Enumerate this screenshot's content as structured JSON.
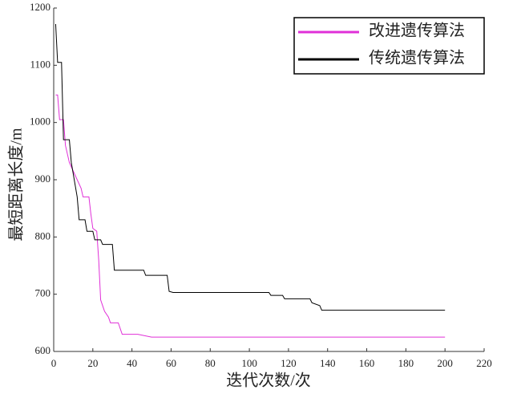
{
  "chart_data": {
    "type": "line",
    "x_label": "迭代次数/次",
    "y_label": "最短距离长度/m",
    "xlim": [
      0,
      220
    ],
    "xticks": [
      0,
      20,
      40,
      60,
      80,
      100,
      120,
      140,
      160,
      180,
      200,
      220
    ],
    "ylim": [
      600,
      1200
    ],
    "yticks": [
      600,
      700,
      800,
      900,
      1000,
      1100,
      1200
    ],
    "legend": "upper right",
    "series": [
      {
        "name": "改进遗传算法",
        "color": "#e030d8",
        "x": [
          1,
          2,
          3,
          5,
          6,
          8,
          10,
          12,
          14,
          15,
          18,
          19,
          20,
          22,
          23,
          24,
          25,
          26,
          28,
          29,
          33,
          35,
          43,
          50,
          200
        ],
        "values": [
          1048,
          1048,
          1005,
          1005,
          960,
          930,
          915,
          900,
          885,
          870,
          870,
          840,
          815,
          810,
          760,
          690,
          680,
          670,
          660,
          650,
          650,
          630,
          630,
          625,
          625
        ]
      },
      {
        "name": "传统遗传算法",
        "color": "#000000",
        "x": [
          1,
          2,
          4,
          5,
          8,
          9,
          12,
          13,
          16,
          17,
          20,
          21,
          24,
          25,
          30,
          31,
          46,
          47,
          58,
          59,
          61,
          110,
          111,
          117,
          118,
          131,
          132,
          136,
          137,
          200
        ],
        "values": [
          1172,
          1105,
          1105,
          970,
          970,
          930,
          870,
          830,
          830,
          810,
          810,
          795,
          795,
          787,
          787,
          742,
          742,
          733,
          733,
          705,
          703,
          703,
          698,
          698,
          692,
          692,
          685,
          680,
          672,
          672
        ]
      }
    ]
  }
}
